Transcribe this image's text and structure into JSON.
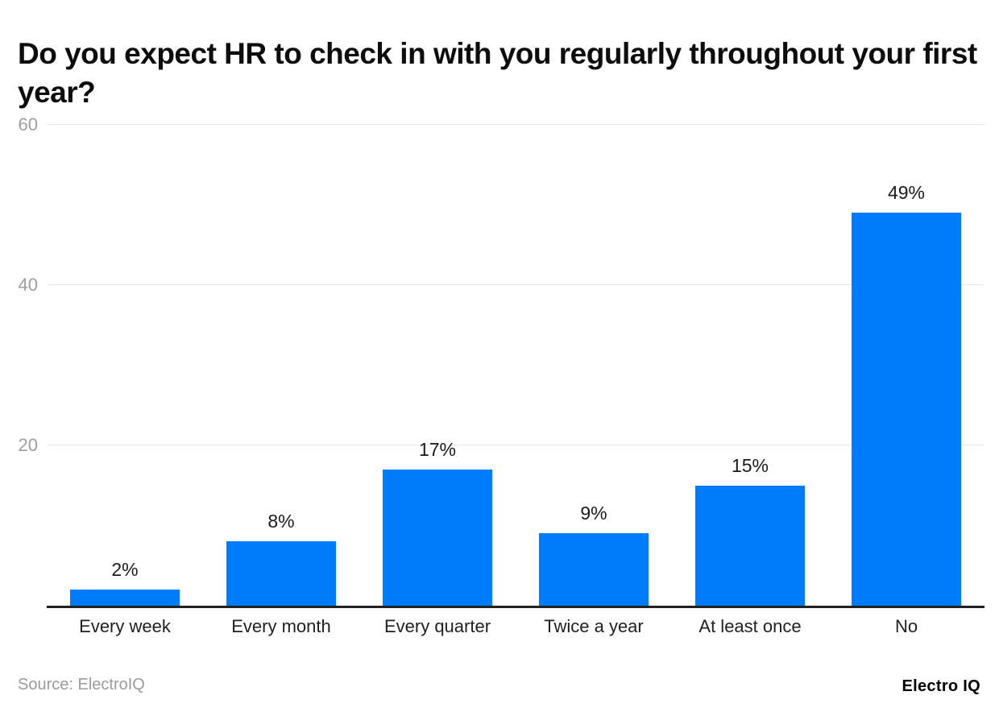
{
  "title": "Do you expect HR to check in with you regularly throughout your first year?",
  "chart_data": {
    "type": "bar",
    "title": "Do you expect HR to check in with you regularly throughout your first year?",
    "categories": [
      "Every week",
      "Every month",
      "Every quarter",
      "Twice a year",
      "At least once",
      "No"
    ],
    "values": [
      2,
      8,
      17,
      9,
      15,
      49
    ],
    "value_labels": [
      "2%",
      "8%",
      "17%",
      "9%",
      "15%",
      "49%"
    ],
    "xlabel": "",
    "ylabel": "",
    "ylim": [
      0,
      60
    ],
    "yticks": [
      20,
      40,
      60
    ],
    "grid": true,
    "legend": false,
    "bar_color": "#007bfa"
  },
  "footer": {
    "source": "Source: ElectroIQ",
    "brand": "Electro IQ"
  },
  "colors": {
    "bar": "#007bfa",
    "gridline": "#e8e8e8",
    "axis": "#212121",
    "tick_label": "#9e9e9e",
    "title_text": "#0d0d0d"
  }
}
